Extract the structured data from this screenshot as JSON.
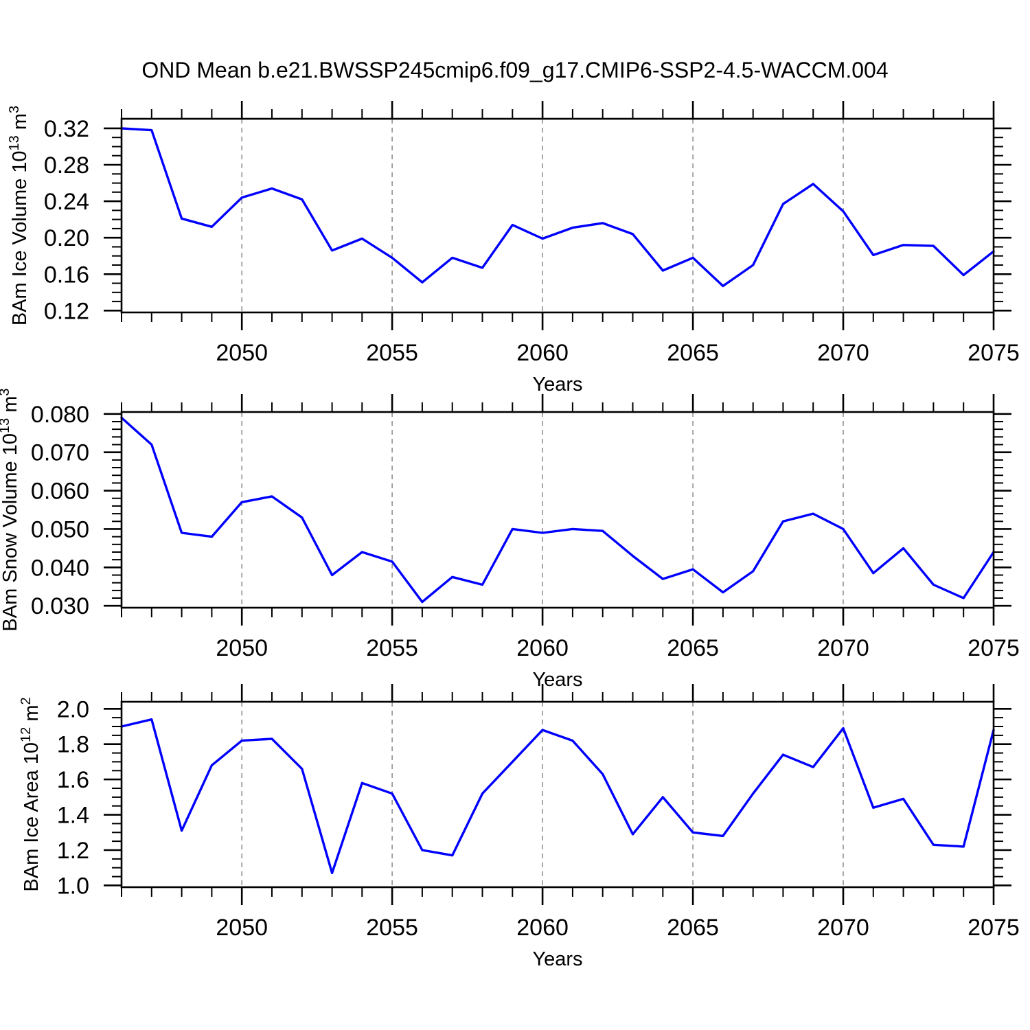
{
  "title": "OND Mean b.e21.BWSSP245cmip6.f09_g17.CMIP6-SSP2-4.5-WACCM.004",
  "accent_color": "#0000ff",
  "chart_data": [
    {
      "type": "line",
      "name": "bam-ice-volume",
      "xlabel": "Years",
      "ylabel": {
        "base": "BAm Ice Volume 10",
        "exp": "13",
        "unit": " m",
        "unit_exp": "3"
      },
      "line_color": "#0000ff",
      "xlim": [
        2046,
        2075
      ],
      "ylim": [
        0.118,
        0.3305
      ],
      "x": [
        2046,
        2047,
        2048,
        2049,
        2050,
        2051,
        2052,
        2053,
        2054,
        2055,
        2056,
        2057,
        2058,
        2059,
        2060,
        2061,
        2062,
        2063,
        2064,
        2065,
        2066,
        2067,
        2068,
        2069,
        2070,
        2071,
        2072,
        2073,
        2074,
        2075
      ],
      "values": [
        0.32,
        0.318,
        0.221,
        0.212,
        0.244,
        0.254,
        0.242,
        0.186,
        0.199,
        0.178,
        0.151,
        0.178,
        0.167,
        0.214,
        0.199,
        0.211,
        0.216,
        0.204,
        0.164,
        0.178,
        0.147,
        0.17,
        0.237,
        0.259,
        0.229,
        0.181,
        0.192,
        0.191,
        0.159,
        0.185
      ],
      "x_major_ticks": [
        2050,
        2055,
        2060,
        2065,
        2070,
        2075
      ],
      "x_tick_labels": [
        "2050",
        "2055",
        "2060",
        "2065",
        "2070",
        "2075"
      ],
      "x_minor_step": 1,
      "grid_x": [
        2050,
        2055,
        2060,
        2065,
        2070
      ],
      "y_major_ticks": [
        0.12,
        0.16,
        0.2,
        0.24,
        0.28,
        0.32
      ],
      "y_tick_labels": [
        "0.12",
        "0.16",
        "0.20",
        "0.24",
        "0.28",
        "0.32"
      ],
      "y_minor_step": 0.01
    },
    {
      "type": "line",
      "name": "bam-snow-volume",
      "xlabel": "Years",
      "ylabel": {
        "base": "BAm Snow Volume 10",
        "exp": "13",
        "unit": " m",
        "unit_exp": "3"
      },
      "line_color": "#0000ff",
      "xlim": [
        2046,
        2075
      ],
      "ylim": [
        0.0295,
        0.0805
      ],
      "x": [
        2046,
        2047,
        2048,
        2049,
        2050,
        2051,
        2052,
        2053,
        2054,
        2055,
        2056,
        2057,
        2058,
        2059,
        2060,
        2061,
        2062,
        2063,
        2064,
        2065,
        2066,
        2067,
        2068,
        2069,
        2070,
        2071,
        2072,
        2073,
        2074,
        2075
      ],
      "values": [
        0.079,
        0.072,
        0.049,
        0.048,
        0.057,
        0.0585,
        0.053,
        0.038,
        0.044,
        0.0415,
        0.031,
        0.0375,
        0.0355,
        0.05,
        0.049,
        0.05,
        0.0495,
        0.043,
        0.037,
        0.0395,
        0.0335,
        0.039,
        0.052,
        0.054,
        0.05,
        0.0385,
        0.045,
        0.0355,
        0.032,
        0.044
      ],
      "x_major_ticks": [
        2050,
        2055,
        2060,
        2065,
        2070,
        2075
      ],
      "x_tick_labels": [
        "2050",
        "2055",
        "2060",
        "2065",
        "2070",
        "2075"
      ],
      "x_minor_step": 1,
      "grid_x": [
        2050,
        2055,
        2060,
        2065,
        2070
      ],
      "y_major_ticks": [
        0.03,
        0.04,
        0.05,
        0.06,
        0.07,
        0.08
      ],
      "y_tick_labels": [
        "0.030",
        "0.040",
        "0.050",
        "0.060",
        "0.070",
        "0.080"
      ],
      "y_minor_step": 0.002
    },
    {
      "type": "line",
      "name": "bam-ice-area",
      "xlabel": "Years",
      "ylabel": {
        "base": "BAm Ice Area 10",
        "exp": "12",
        "unit": " m",
        "unit_exp": "2"
      },
      "line_color": "#0000ff",
      "xlim": [
        2046,
        2075
      ],
      "ylim": [
        0.99,
        2.04
      ],
      "x": [
        2046,
        2047,
        2048,
        2049,
        2050,
        2051,
        2052,
        2053,
        2054,
        2055,
        2056,
        2057,
        2058,
        2059,
        2060,
        2061,
        2062,
        2063,
        2064,
        2065,
        2066,
        2067,
        2068,
        2069,
        2070,
        2071,
        2072,
        2073,
        2074,
        2075
      ],
      "values": [
        1.9,
        1.94,
        1.31,
        1.68,
        1.82,
        1.83,
        1.66,
        1.07,
        1.58,
        1.52,
        1.2,
        1.17,
        1.52,
        1.7,
        1.88,
        1.82,
        1.63,
        1.29,
        1.5,
        1.3,
        1.28,
        1.52,
        1.74,
        1.67,
        1.89,
        1.44,
        1.49,
        1.23,
        1.22,
        1.88
      ],
      "x_major_ticks": [
        2050,
        2055,
        2060,
        2065,
        2070,
        2075
      ],
      "x_tick_labels": [
        "2050",
        "2055",
        "2060",
        "2065",
        "2070",
        "2075"
      ],
      "x_minor_step": 1,
      "grid_x": [
        2050,
        2055,
        2060,
        2065,
        2070
      ],
      "y_major_ticks": [
        1.0,
        1.2,
        1.4,
        1.6,
        1.8,
        2.0
      ],
      "y_tick_labels": [
        "1.0",
        "1.2",
        "1.4",
        "1.6",
        "1.8",
        "2.0"
      ],
      "y_minor_step": 0.05
    }
  ]
}
